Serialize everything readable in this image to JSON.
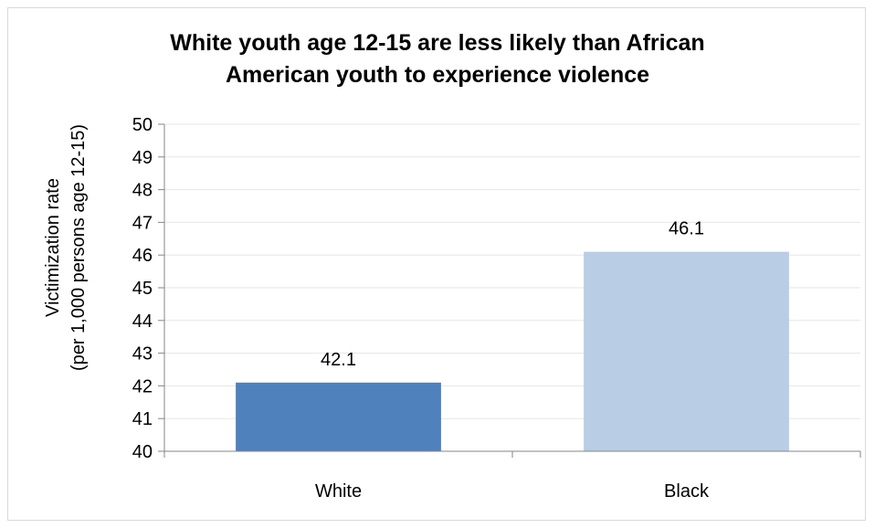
{
  "chart_data": {
    "type": "bar",
    "title_lines": [
      "White youth age 12-15 are less likely than African",
      "American youth to experience violence"
    ],
    "ylabel_lines": [
      "Victimization rate",
      "(per 1,000 persons age 12-15)"
    ],
    "xlabel": "",
    "categories": [
      "White",
      "Black"
    ],
    "values": [
      42.1,
      46.1
    ],
    "data_labels": [
      "42.1",
      "46.1"
    ],
    "bar_colors": [
      "#4f81bd",
      "#b9cde5"
    ],
    "ylim": [
      40,
      50
    ],
    "yticks": [
      40,
      41,
      42,
      43,
      44,
      45,
      46,
      47,
      48,
      49,
      50
    ],
    "grid": true,
    "legend": "none"
  }
}
